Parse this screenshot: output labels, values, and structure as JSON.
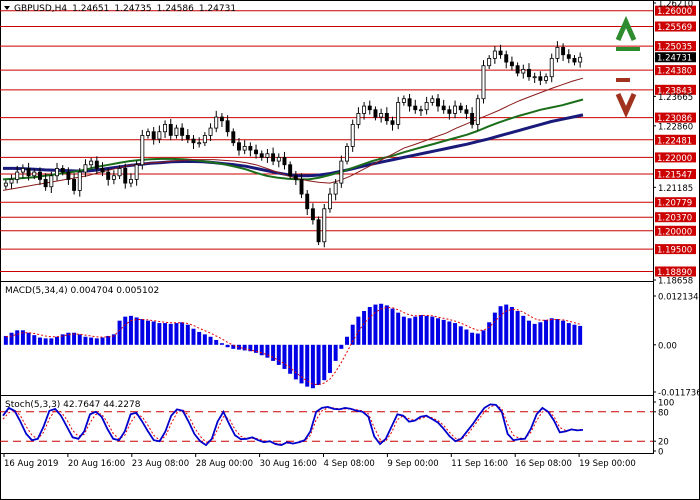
{
  "header": {
    "symbol": "GBPUSD,H4",
    "open": "1.24651",
    "high": "1.24735",
    "low": "1.24586",
    "close": "1.24731"
  },
  "colors": {
    "resistance_line": "#cc0000",
    "ma_fast": "#8b1a1a",
    "ma_mid": "#1a6e1a",
    "ma_slow": "#1a1a7a",
    "candle": "#000000",
    "histogram": "#0000e6",
    "signal": "#e60000",
    "stoch_main": "#0000cc",
    "arrow_up": "#2e8b2e",
    "arrow_down": "#a0321e",
    "current_price_bg": "#000000"
  },
  "icons": [
    "arrow-up-icon",
    "arrow-down-icon",
    "collapse-triangle-icon"
  ],
  "chart_data": [
    {
      "type": "candlestick",
      "title": "GBPUSD,H4 1.24651 1.24735 1.24586 1.24731",
      "ylim": [
        1.18658,
        1.2621
      ],
      "x_ticks": [
        "16 Aug 2019",
        "20 Aug 16:00",
        "23 Aug 08:00",
        "28 Aug 00:00",
        "30 Aug 16:00",
        "4 Sep 08:00",
        "9 Sep 00:00",
        "11 Sep 16:00",
        "16 Sep 08:00",
        "19 Sep 00:00"
      ],
      "price_axis_plain": [
        "1.26210",
        "1.23665",
        "1.22860",
        "1.21185",
        "1.18658"
      ],
      "price_axis_highlighted": [
        "1.26000",
        "1.25569",
        "1.25035",
        "1.24731",
        "1.24380",
        "1.23843",
        "1.23086",
        "1.22481",
        "1.22000",
        "1.21547",
        "1.20779",
        "1.20370",
        "1.20000",
        "1.19500",
        "1.18890"
      ],
      "horizontal_levels": [
        1.26,
        1.25569,
        1.25035,
        1.2438,
        1.23843,
        1.23086,
        1.22481,
        1.22,
        1.21547,
        1.20779,
        1.2037,
        1.2,
        1.195,
        1.1889
      ],
      "current_price": 1.24731,
      "close_series": [
        1.213,
        1.214,
        1.216,
        1.217,
        1.215,
        1.216,
        1.214,
        1.212,
        1.215,
        1.217,
        1.216,
        1.214,
        1.211,
        1.216,
        1.218,
        1.219,
        1.217,
        1.216,
        1.214,
        1.215,
        1.217,
        1.213,
        1.214,
        1.218,
        1.226,
        1.227,
        1.225,
        1.227,
        1.229,
        1.226,
        1.228,
        1.226,
        1.225,
        1.224,
        1.224,
        1.226,
        1.228,
        1.231,
        1.23,
        1.227,
        1.224,
        1.222,
        1.223,
        1.222,
        1.221,
        1.22,
        1.221,
        1.219,
        1.22,
        1.218,
        1.215,
        1.214,
        1.21,
        1.206,
        1.203,
        1.197,
        1.206,
        1.21,
        1.213,
        1.219,
        1.223,
        1.229,
        1.232,
        1.234,
        1.233,
        1.231,
        1.232,
        1.23,
        1.229,
        1.235,
        1.236,
        1.234,
        1.233,
        1.233,
        1.235,
        1.236,
        1.234,
        1.233,
        1.232,
        1.234,
        1.233,
        1.232,
        1.229,
        1.236,
        1.245,
        1.247,
        1.249,
        1.248,
        1.246,
        1.245,
        1.243,
        1.244,
        1.242,
        1.242,
        1.241,
        1.242,
        1.247,
        1.25,
        1.248,
        1.247,
        1.246,
        1.2473
      ],
      "ma_fast_series": [
        1.211,
        1.2115,
        1.212,
        1.2125,
        1.213,
        1.2135,
        1.214,
        1.2145,
        1.215,
        1.2158,
        1.2165,
        1.2172,
        1.2178,
        1.2182,
        1.2185,
        1.2187,
        1.219,
        1.2192,
        1.2194,
        1.2194,
        1.2194,
        1.2192,
        1.219,
        1.2186,
        1.218,
        1.217,
        1.216,
        1.215,
        1.2142,
        1.2136,
        1.2132,
        1.213,
        1.2138,
        1.215,
        1.2165,
        1.218,
        1.2195,
        1.221,
        1.2225,
        1.2235,
        1.2245,
        1.2256,
        1.2266,
        1.228,
        1.2292,
        1.2304,
        1.2316,
        1.2328,
        1.2342,
        1.2355,
        1.2366,
        1.2377,
        1.2388,
        1.2398,
        1.2408,
        1.2416
      ],
      "ma_mid_series": [
        1.214,
        1.2142,
        1.2144,
        1.2146,
        1.215,
        1.2154,
        1.2158,
        1.2162,
        1.2168,
        1.2175,
        1.218,
        1.2185,
        1.219,
        1.2193,
        1.2195,
        1.2196,
        1.2196,
        1.2195,
        1.2193,
        1.219,
        1.2186,
        1.2181,
        1.2175,
        1.2168,
        1.2158,
        1.215,
        1.2145,
        1.2142,
        1.214,
        1.214,
        1.2145,
        1.2152,
        1.216,
        1.217,
        1.218,
        1.219,
        1.2198,
        1.2205,
        1.2214,
        1.2222,
        1.223,
        1.2238,
        1.2246,
        1.2254,
        1.2262,
        1.2272,
        1.2284,
        1.2295,
        1.2305,
        1.2314,
        1.2322,
        1.233,
        1.2336,
        1.2342,
        1.235,
        1.2358
      ],
      "ma_slow_series": [
        1.217,
        1.217,
        1.2169,
        1.2168,
        1.2166,
        1.2165,
        1.2164,
        1.2163,
        1.2163,
        1.2166,
        1.217,
        1.2174,
        1.2178,
        1.2181,
        1.2184,
        1.2186,
        1.2188,
        1.2189,
        1.2189,
        1.2188,
        1.2186,
        1.2183,
        1.218,
        1.2176,
        1.217,
        1.2164,
        1.2158,
        1.2153,
        1.215,
        1.215,
        1.2152,
        1.2156,
        1.2162,
        1.2168,
        1.2175,
        1.2182,
        1.2188,
        1.2194,
        1.22,
        1.2206,
        1.2212,
        1.2218,
        1.2224,
        1.223,
        1.2236,
        1.2243,
        1.225,
        1.2258,
        1.2266,
        1.2274,
        1.2282,
        1.229,
        1.2298,
        1.2304,
        1.231,
        1.2316
      ]
    },
    {
      "type": "bar",
      "title": "MACD(5,34,4) 0.004704 0.005102",
      "ylim": [
        -0.011736,
        0.012134
      ],
      "y_ticks": [
        "0.012134",
        "0.00",
        "-0.011736"
      ],
      "histogram": [
        0.0022,
        0.003,
        0.0036,
        0.0036,
        0.003,
        0.0024,
        0.0018,
        0.0016,
        0.0016,
        0.002,
        0.0026,
        0.003,
        0.003,
        0.0026,
        0.002,
        0.0018,
        0.0016,
        0.0018,
        0.0022,
        0.0026,
        0.006,
        0.007,
        0.0072,
        0.0068,
        0.0064,
        0.006,
        0.0058,
        0.0054,
        0.0054,
        0.0052,
        0.0054,
        0.0056,
        0.005,
        0.004,
        0.0032,
        0.0026,
        0.002,
        0.0012,
        0.0004,
        -0.0006,
        -0.001,
        -0.0012,
        -0.0014,
        -0.0016,
        -0.002,
        -0.0026,
        -0.0032,
        -0.004,
        -0.005,
        -0.006,
        -0.0072,
        -0.0086,
        -0.0096,
        -0.0104,
        -0.0108,
        -0.01,
        -0.0088,
        -0.007,
        -0.004,
        -0.001,
        0.002,
        0.005,
        0.007,
        0.0084,
        0.0094,
        0.01,
        0.0102,
        0.0098,
        0.009,
        0.008,
        0.007,
        0.0066,
        0.007,
        0.0074,
        0.0072,
        0.007,
        0.0066,
        0.0062,
        0.0058,
        0.0054,
        0.0046,
        0.0038,
        0.003,
        0.0028,
        0.0036,
        0.0056,
        0.008,
        0.0096,
        0.01,
        0.0094,
        0.0084,
        0.0072,
        0.006,
        0.0052,
        0.0056,
        0.0062,
        0.0066,
        0.0064,
        0.006,
        0.0054,
        0.005,
        0.0047
      ],
      "signal": [
        0.002,
        0.0022,
        0.0026,
        0.003,
        0.003,
        0.0028,
        0.0025,
        0.0022,
        0.002,
        0.002,
        0.0022,
        0.0025,
        0.0027,
        0.0026,
        0.0024,
        0.0022,
        0.002,
        0.0019,
        0.002,
        0.0022,
        0.0036,
        0.005,
        0.006,
        0.0063,
        0.0063,
        0.0062,
        0.006,
        0.0058,
        0.0056,
        0.0055,
        0.0055,
        0.0055,
        0.0053,
        0.0048,
        0.0041,
        0.0035,
        0.0029,
        0.0022,
        0.0015,
        0.0006,
        -0.0001,
        -0.0006,
        -0.001,
        -0.0013,
        -0.0016,
        -0.002,
        -0.0025,
        -0.0031,
        -0.0039,
        -0.0047,
        -0.0057,
        -0.0069,
        -0.008,
        -0.009,
        -0.0098,
        -0.0099,
        -0.0095,
        -0.0085,
        -0.0067,
        -0.0044,
        -0.0018,
        0.0009,
        0.0033,
        0.0053,
        0.0069,
        0.0081,
        0.0089,
        0.0093,
        0.0092,
        0.0087,
        0.008,
        0.0074,
        0.0072,
        0.0073,
        0.0073,
        0.0072,
        0.0069,
        0.0066,
        0.0063,
        0.0059,
        0.0054,
        0.0048,
        0.0041,
        0.0036,
        0.0036,
        0.0044,
        0.0058,
        0.0073,
        0.0084,
        0.0088,
        0.0087,
        0.0081,
        0.0073,
        0.0065,
        0.0061,
        0.0061,
        0.0063,
        0.0063,
        0.0062,
        0.0059,
        0.0055,
        0.0051
      ]
    },
    {
      "type": "line",
      "title": "Stoch(5,3,3) 42.7647 44.2278",
      "ylim": [
        0,
        100
      ],
      "y_ticks": [
        "100",
        "80",
        "20",
        "0"
      ],
      "levels": [
        80,
        20
      ],
      "main": [
        72,
        88,
        82,
        60,
        35,
        22,
        25,
        50,
        82,
        86,
        72,
        50,
        28,
        25,
        40,
        75,
        80,
        70,
        45,
        25,
        22,
        40,
        75,
        78,
        60,
        40,
        22,
        20,
        40,
        72,
        85,
        82,
        60,
        35,
        20,
        12,
        25,
        60,
        80,
        55,
        32,
        24,
        25,
        28,
        22,
        18,
        20,
        14,
        12,
        18,
        15,
        18,
        22,
        40,
        80,
        88,
        90,
        86,
        85,
        88,
        86,
        82,
        80,
        70,
        30,
        14,
        25,
        50,
        75,
        72,
        60,
        62,
        70,
        72,
        65,
        58,
        45,
        30,
        20,
        25,
        40,
        55,
        72,
        88,
        95,
        94,
        80,
        35,
        22,
        24,
        25,
        45,
        75,
        88,
        80,
        62,
        38,
        40,
        44,
        42,
        43
      ],
      "signal": [
        65,
        78,
        84,
        72,
        50,
        32,
        25,
        38,
        66,
        84,
        80,
        64,
        42,
        30,
        34,
        58,
        75,
        76,
        58,
        36,
        24,
        32,
        58,
        74,
        70,
        52,
        32,
        22,
        30,
        56,
        78,
        84,
        72,
        48,
        30,
        18,
        20,
        44,
        70,
        66,
        44,
        30,
        25,
        26,
        25,
        21,
        19,
        16,
        14,
        16,
        16,
        17,
        20,
        32,
        64,
        82,
        88,
        88,
        86,
        86,
        86,
        84,
        82,
        76,
        48,
        24,
        20,
        38,
        64,
        72,
        66,
        62,
        66,
        70,
        68,
        62,
        52,
        38,
        26,
        24,
        32,
        48,
        64,
        80,
        90,
        94,
        86,
        55,
        32,
        26,
        26,
        38,
        62,
        80,
        82,
        70,
        48,
        42,
        43,
        43,
        44
      ]
    }
  ]
}
